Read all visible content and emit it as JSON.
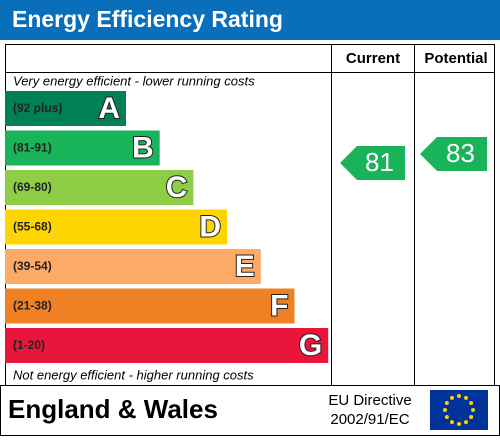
{
  "header": {
    "title": "Energy Efficiency Rating"
  },
  "columns": [
    "Current",
    "Potential"
  ],
  "top_note": "Very energy efficient - lower running costs",
  "bottom_note": "Not energy efficient - higher running costs",
  "bands": [
    {
      "range": "(92 plus)",
      "letter": "A",
      "color": "#008054"
    },
    {
      "range": "(81-91)",
      "letter": "B",
      "color": "#19b459"
    },
    {
      "range": "(69-80)",
      "letter": "C",
      "color": "#8dce46"
    },
    {
      "range": "(55-68)",
      "letter": "D",
      "color": "#ffd500"
    },
    {
      "range": "(39-54)",
      "letter": "E",
      "color": "#fcaa65"
    },
    {
      "range": "(21-38)",
      "letter": "F",
      "color": "#ef8023"
    },
    {
      "range": "(1-20)",
      "letter": "G",
      "color": "#e9153b"
    }
  ],
  "current": {
    "value": 81,
    "color": "#19b459"
  },
  "potential": {
    "value": 83,
    "color": "#19b459"
  },
  "footer": {
    "region": "England & Wales",
    "directive": [
      "EU Directive",
      "2002/91/EC"
    ]
  }
}
